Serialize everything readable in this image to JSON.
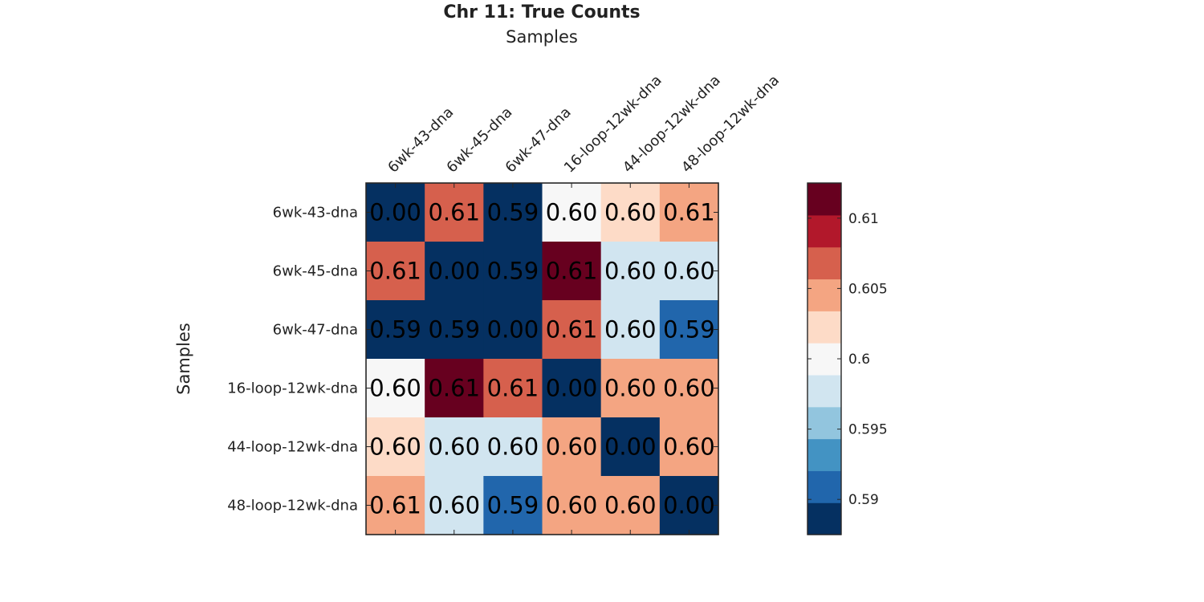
{
  "chart_data": {
    "type": "heatmap",
    "title": "Chr 11: True Counts",
    "xlabel": "Samples",
    "ylabel": "Samples",
    "x_categories": [
      "6wk-43-dna",
      "6wk-45-dna",
      "6wk-47-dna",
      "16-loop-12wk-dna",
      "44-loop-12wk-dna",
      "48-loop-12wk-dna"
    ],
    "y_categories": [
      "6wk-43-dna",
      "6wk-45-dna",
      "6wk-47-dna",
      "16-loop-12wk-dna",
      "44-loop-12wk-dna",
      "48-loop-12wk-dna"
    ],
    "values": [
      [
        0.0,
        0.607,
        0.589,
        0.6,
        0.603,
        0.605
      ],
      [
        0.607,
        0.0,
        0.589,
        0.612,
        0.598,
        0.598
      ],
      [
        0.589,
        0.589,
        0.0,
        0.607,
        0.598,
        0.59
      ],
      [
        0.6,
        0.612,
        0.607,
        0.0,
        0.604,
        0.604
      ],
      [
        0.603,
        0.598,
        0.598,
        0.604,
        0.0,
        0.604
      ],
      [
        0.605,
        0.598,
        0.59,
        0.604,
        0.604,
        0.0
      ]
    ],
    "value_labels": [
      [
        "0.00",
        "0.61",
        "0.59",
        "0.60",
        "0.60",
        "0.61"
      ],
      [
        "0.61",
        "0.00",
        "0.59",
        "0.61",
        "0.60",
        "0.60"
      ],
      [
        "0.59",
        "0.59",
        "0.00",
        "0.61",
        "0.60",
        "0.59"
      ],
      [
        "0.60",
        "0.61",
        "0.61",
        "0.00",
        "0.60",
        "0.60"
      ],
      [
        "0.60",
        "0.60",
        "0.60",
        "0.60",
        "0.00",
        "0.60"
      ],
      [
        "0.61",
        "0.60",
        "0.59",
        "0.60",
        "0.60",
        "0.00"
      ]
    ],
    "colorbar": {
      "range": [
        0.5875,
        0.6125
      ],
      "ticks": [
        0.59,
        0.595,
        0.6,
        0.605,
        0.61
      ],
      "tick_labels": [
        "0.59",
        "0.595",
        "0.6",
        "0.605",
        "0.61"
      ],
      "colors": [
        "#053061",
        "#2166ac",
        "#4393c3",
        "#92c5de",
        "#d1e5f0",
        "#f7f7f7",
        "#fddbc7",
        "#f4a582",
        "#d6604d",
        "#b2182b",
        "#67001f"
      ]
    },
    "grid": false,
    "legend": "colorbar-right"
  }
}
